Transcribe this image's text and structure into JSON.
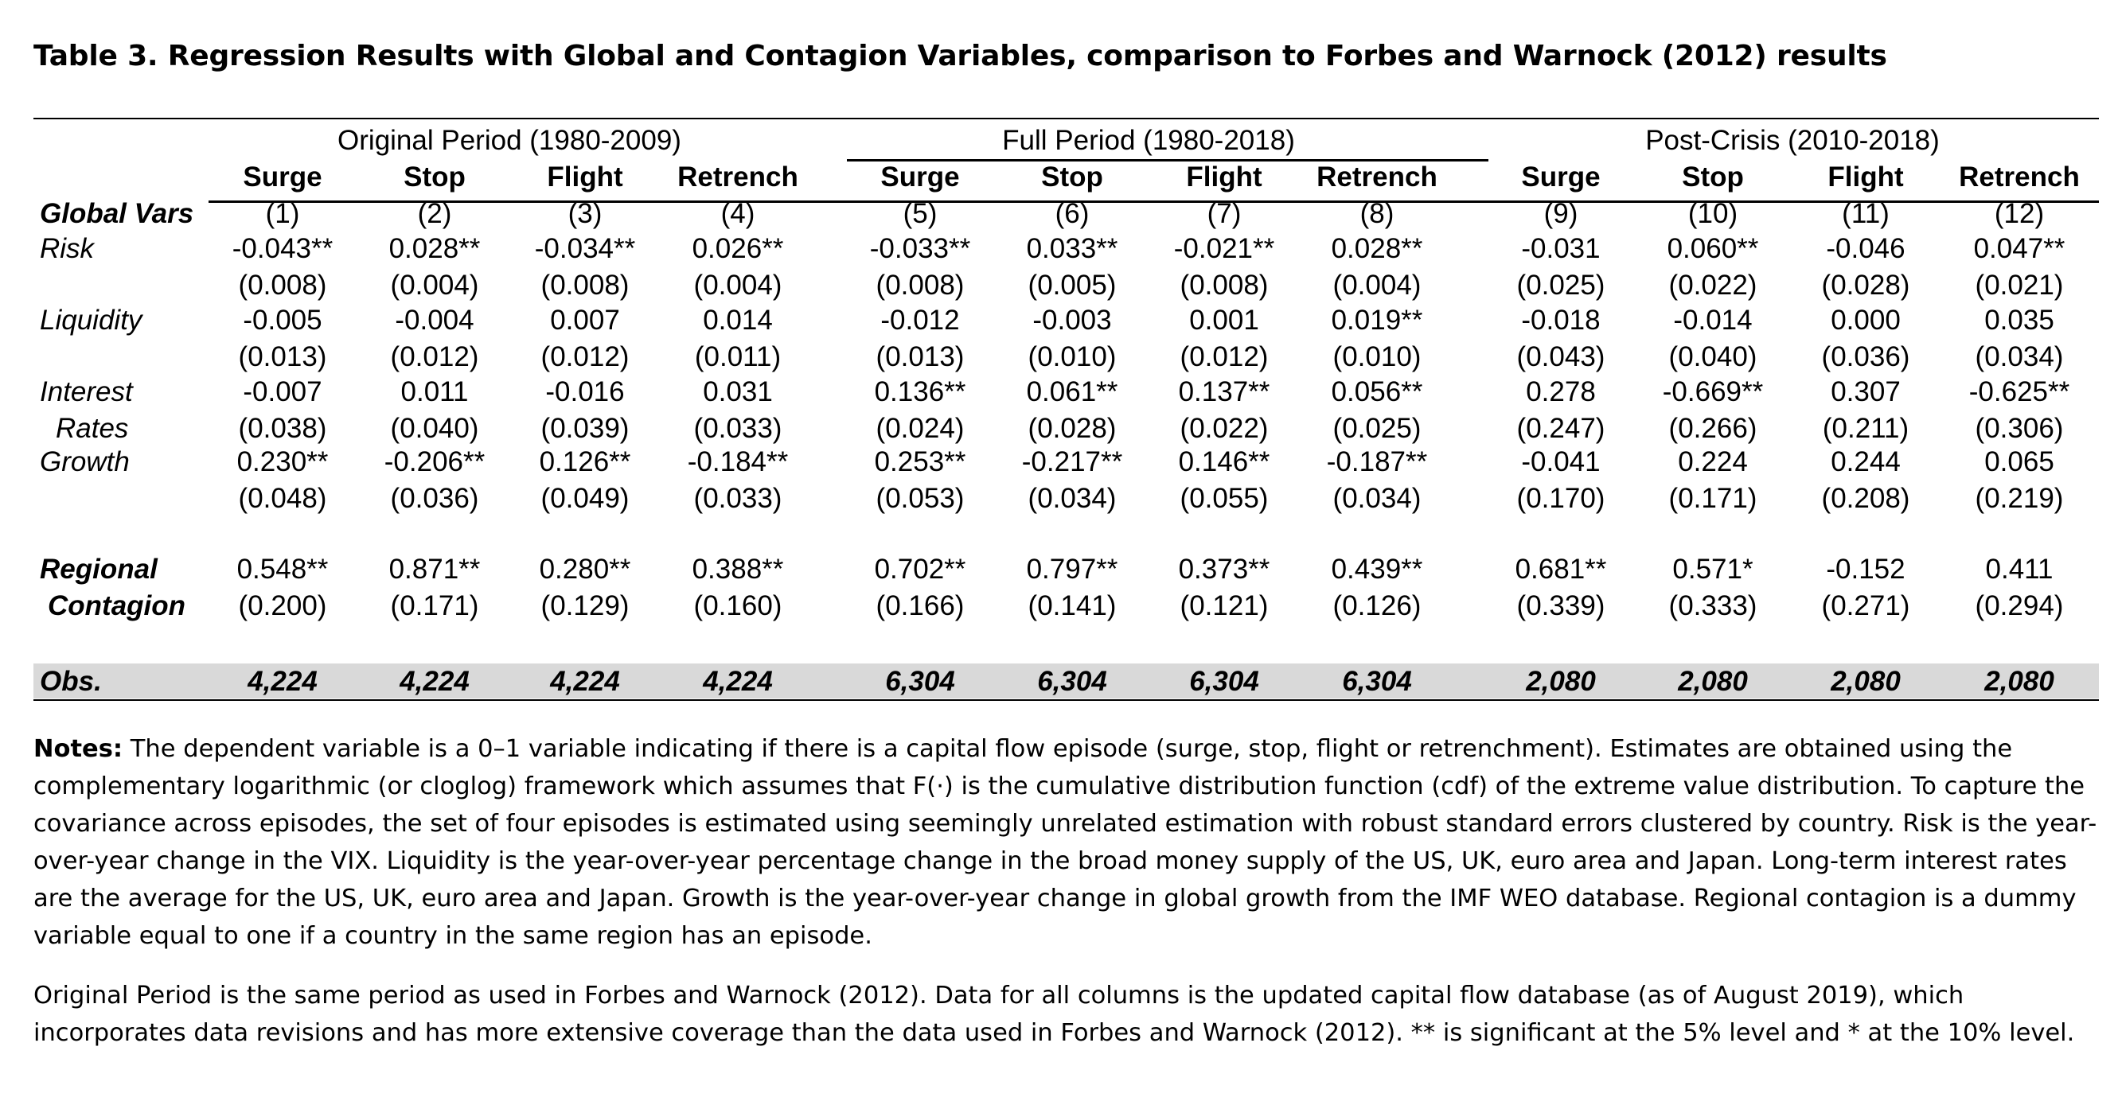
{
  "title": "Table 3. Regression Results with Global and Contagion Variables, comparison to Forbes and Warnock (2012) results",
  "groups": [
    {
      "label": "Original Period (1980-2009)"
    },
    {
      "label": "Full Period (1980-2018)"
    },
    {
      "label": "Post-Crisis (2010-2018)"
    }
  ],
  "columns": [
    {
      "name": "Surge",
      "num": "(1)"
    },
    {
      "name": "Stop",
      "num": "(2)"
    },
    {
      "name": "Flight",
      "num": "(3)"
    },
    {
      "name": "Retrench",
      "num": "(4)"
    },
    {
      "name": "Surge",
      "num": "(5)"
    },
    {
      "name": "Stop",
      "num": "(6)"
    },
    {
      "name": "Flight",
      "num": "(7)"
    },
    {
      "name": "Retrench",
      "num": "(8)"
    },
    {
      "name": "Surge",
      "num": "(9)"
    },
    {
      "name": "Stop",
      "num": "(10)"
    },
    {
      "name": "Flight",
      "num": "(11)"
    },
    {
      "name": "Retrench",
      "num": "(12)"
    }
  ],
  "global_vars_label": "Global Vars",
  "rows": [
    {
      "label": [
        "Risk"
      ],
      "coef": [
        "-0.043**",
        "0.028**",
        "-0.034**",
        "0.026**",
        "-0.033**",
        "0.033**",
        "-0.021**",
        "0.028**",
        "-0.031",
        "0.060**",
        "-0.046",
        "0.047**"
      ],
      "se": [
        "(0.008)",
        "(0.004)",
        "(0.008)",
        "(0.004)",
        "(0.008)",
        "(0.005)",
        "(0.008)",
        "(0.004)",
        "(0.025)",
        "(0.022)",
        "(0.028)",
        "(0.021)"
      ]
    },
    {
      "label": [
        "Liquidity"
      ],
      "coef": [
        "-0.005",
        "-0.004",
        "0.007",
        "0.014",
        "-0.012",
        "-0.003",
        "0.001",
        "0.019**",
        "-0.018",
        "-0.014",
        "0.000",
        "0.035"
      ],
      "se": [
        "(0.013)",
        "(0.012)",
        "(0.012)",
        "(0.011)",
        "(0.013)",
        "(0.010)",
        "(0.012)",
        "(0.010)",
        "(0.043)",
        "(0.040)",
        "(0.036)",
        "(0.034)"
      ]
    },
    {
      "label": [
        "Interest",
        "Rates"
      ],
      "coef": [
        "-0.007",
        "0.011",
        "-0.016",
        "0.031",
        "0.136**",
        "0.061**",
        "0.137**",
        "0.056**",
        "0.278",
        "-0.669**",
        "0.307",
        "-0.625**"
      ],
      "se": [
        "(0.038)",
        "(0.040)",
        "(0.039)",
        "(0.033)",
        "(0.024)",
        "(0.028)",
        "(0.022)",
        "(0.025)",
        "(0.247)",
        "(0.266)",
        "(0.211)",
        "(0.306)"
      ]
    },
    {
      "label": [
        "Growth"
      ],
      "coef": [
        "0.230**",
        "-0.206**",
        "0.126**",
        "-0.184**",
        "0.253**",
        "-0.217**",
        "0.146**",
        "-0.187**",
        "-0.041",
        "0.224",
        "0.244",
        "0.065"
      ],
      "se": [
        "(0.048)",
        "(0.036)",
        "(0.049)",
        "(0.033)",
        "(0.053)",
        "(0.034)",
        "(0.055)",
        "(0.034)",
        "(0.170)",
        "(0.171)",
        "(0.208)",
        "(0.219)"
      ]
    }
  ],
  "contagion": {
    "label": [
      "Regional",
      "Contagion"
    ],
    "coef": [
      "0.548**",
      "0.871**",
      "0.280**",
      "0.388**",
      "0.702**",
      "0.797**",
      "0.373**",
      "0.439**",
      "0.681**",
      "0.571*",
      "-0.152",
      "0.411"
    ],
    "se": [
      "(0.200)",
      "(0.171)",
      "(0.129)",
      "(0.160)",
      "(0.166)",
      "(0.141)",
      "(0.121)",
      "(0.126)",
      "(0.339)",
      "(0.333)",
      "(0.271)",
      "(0.294)"
    ]
  },
  "obs": {
    "label": "Obs.",
    "values": [
      "4,224",
      "4,224",
      "4,224",
      "4,224",
      "6,304",
      "6,304",
      "6,304",
      "6,304",
      "2,080",
      "2,080",
      "2,080",
      "2,080"
    ]
  },
  "notes": {
    "p1_lead": "Notes:",
    "p1_text": " The dependent variable is a 0–1 variable indicating if there is a capital flow episode (surge, stop, flight or retrenchment). Estimates are obtained using the complementary logarithmic (or cloglog) framework which assumes that F(·) is the cumulative distribution function (cdf) of the extreme value distribution. To capture the covariance across episodes, the set of four episodes is estimated using seemingly unrelated estimation with robust standard errors clustered by country. Risk is the year-over-year change in the VIX. Liquidity is the year-over-year percentage change in the broad money supply of the US, UK, euro area and Japan. Long-term interest rates are the average for the US, UK, euro area and Japan. Growth is the year-over-year change in global growth from the IMF WEO database. Regional contagion is a dummy variable equal to one if a country in the same region has an episode.",
    "p2": "Original Period is the same period as used in Forbes and Warnock (2012). Data for all columns is the updated capital flow database (as of August 2019), which incorporates data revisions and has more extensive coverage than the data used in Forbes and Warnock (2012). ** is significant at the 5% level and * at the 10% level."
  }
}
